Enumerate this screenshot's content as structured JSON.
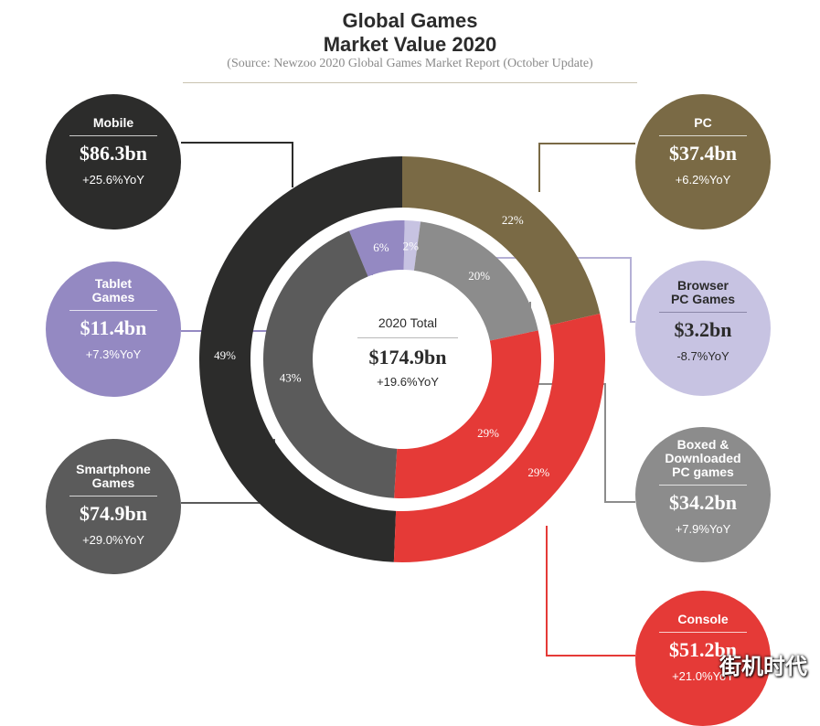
{
  "header": {
    "title_line1": "Global Games",
    "title_line2": "Market Value 2020",
    "source": "(Source: Newzoo 2020 Global Games Market Report (October Update)"
  },
  "center": {
    "label": "2020 Total",
    "value": "$174.9bn",
    "yoy": "+19.6%YoY"
  },
  "watermark": "街机时代",
  "colors": {
    "mobile": "#2c2c2b",
    "pc": "#7a6a45",
    "console": "#e53a37",
    "tablet": "#9489c2",
    "browser": "#c7c3e2",
    "boxed": "#8c8c8c",
    "smartphone": "#5b5b5b"
  },
  "segments": {
    "mobile": {
      "label": "Mobile",
      "value": "$86.3bn",
      "yoy": "+25.6%YoY"
    },
    "tablet": {
      "label_line1": "Tablet",
      "label_line2": "Games",
      "value": "$11.4bn",
      "yoy": "+7.3%YoY"
    },
    "smartphone": {
      "label_line1": "Smartphone",
      "label_line2": "Games",
      "value": "$74.9bn",
      "yoy": "+29.0%YoY"
    },
    "pc": {
      "label": "PC",
      "value": "$37.4bn",
      "yoy": "+6.2%YoY"
    },
    "browser": {
      "label_line1": "Browser",
      "label_line2": "PC Games",
      "value": "$3.2bn",
      "yoy": "-8.7%YoY"
    },
    "boxed": {
      "label_line1": "Boxed &",
      "label_line2": "Downloaded",
      "label_line3": "PC games",
      "value": "$34.2bn",
      "yoy": "+7.9%YoY"
    },
    "console": {
      "label": "Console",
      "value": "$51.2bn",
      "yoy": "+21.0%YoY"
    }
  },
  "chart_data": {
    "type": "pie",
    "title": "Global Games Market Value 2020",
    "total": 174.9,
    "unit": "bn USD",
    "outer_ring": [
      {
        "name": "Mobile",
        "value": 86.3,
        "percent": 49,
        "label": "49%",
        "color": "#2c2c2b"
      },
      {
        "name": "PC",
        "value": 37.4,
        "percent": 22,
        "label": "22%",
        "color": "#7a6a45"
      },
      {
        "name": "Console",
        "value": 51.2,
        "percent": 29,
        "label": "29%",
        "color": "#e53a37"
      }
    ],
    "inner_ring": [
      {
        "name": "Tablet Games",
        "value": 11.4,
        "percent": 6,
        "label": "6%",
        "color": "#9489c2"
      },
      {
        "name": "Browser PC Games",
        "value": 3.2,
        "percent": 2,
        "label": "2%",
        "color": "#c7c3e2"
      },
      {
        "name": "Boxed & Downloaded PC games",
        "value": 34.2,
        "percent": 20,
        "label": "20%",
        "color": "#8c8c8c"
      },
      {
        "name": "Console",
        "value": 51.2,
        "percent": 29,
        "label": "29%",
        "color": "#e53a37"
      },
      {
        "name": "Smartphone Games",
        "value": 74.9,
        "percent": 43,
        "label": "43%",
        "color": "#5b5b5b"
      }
    ]
  }
}
